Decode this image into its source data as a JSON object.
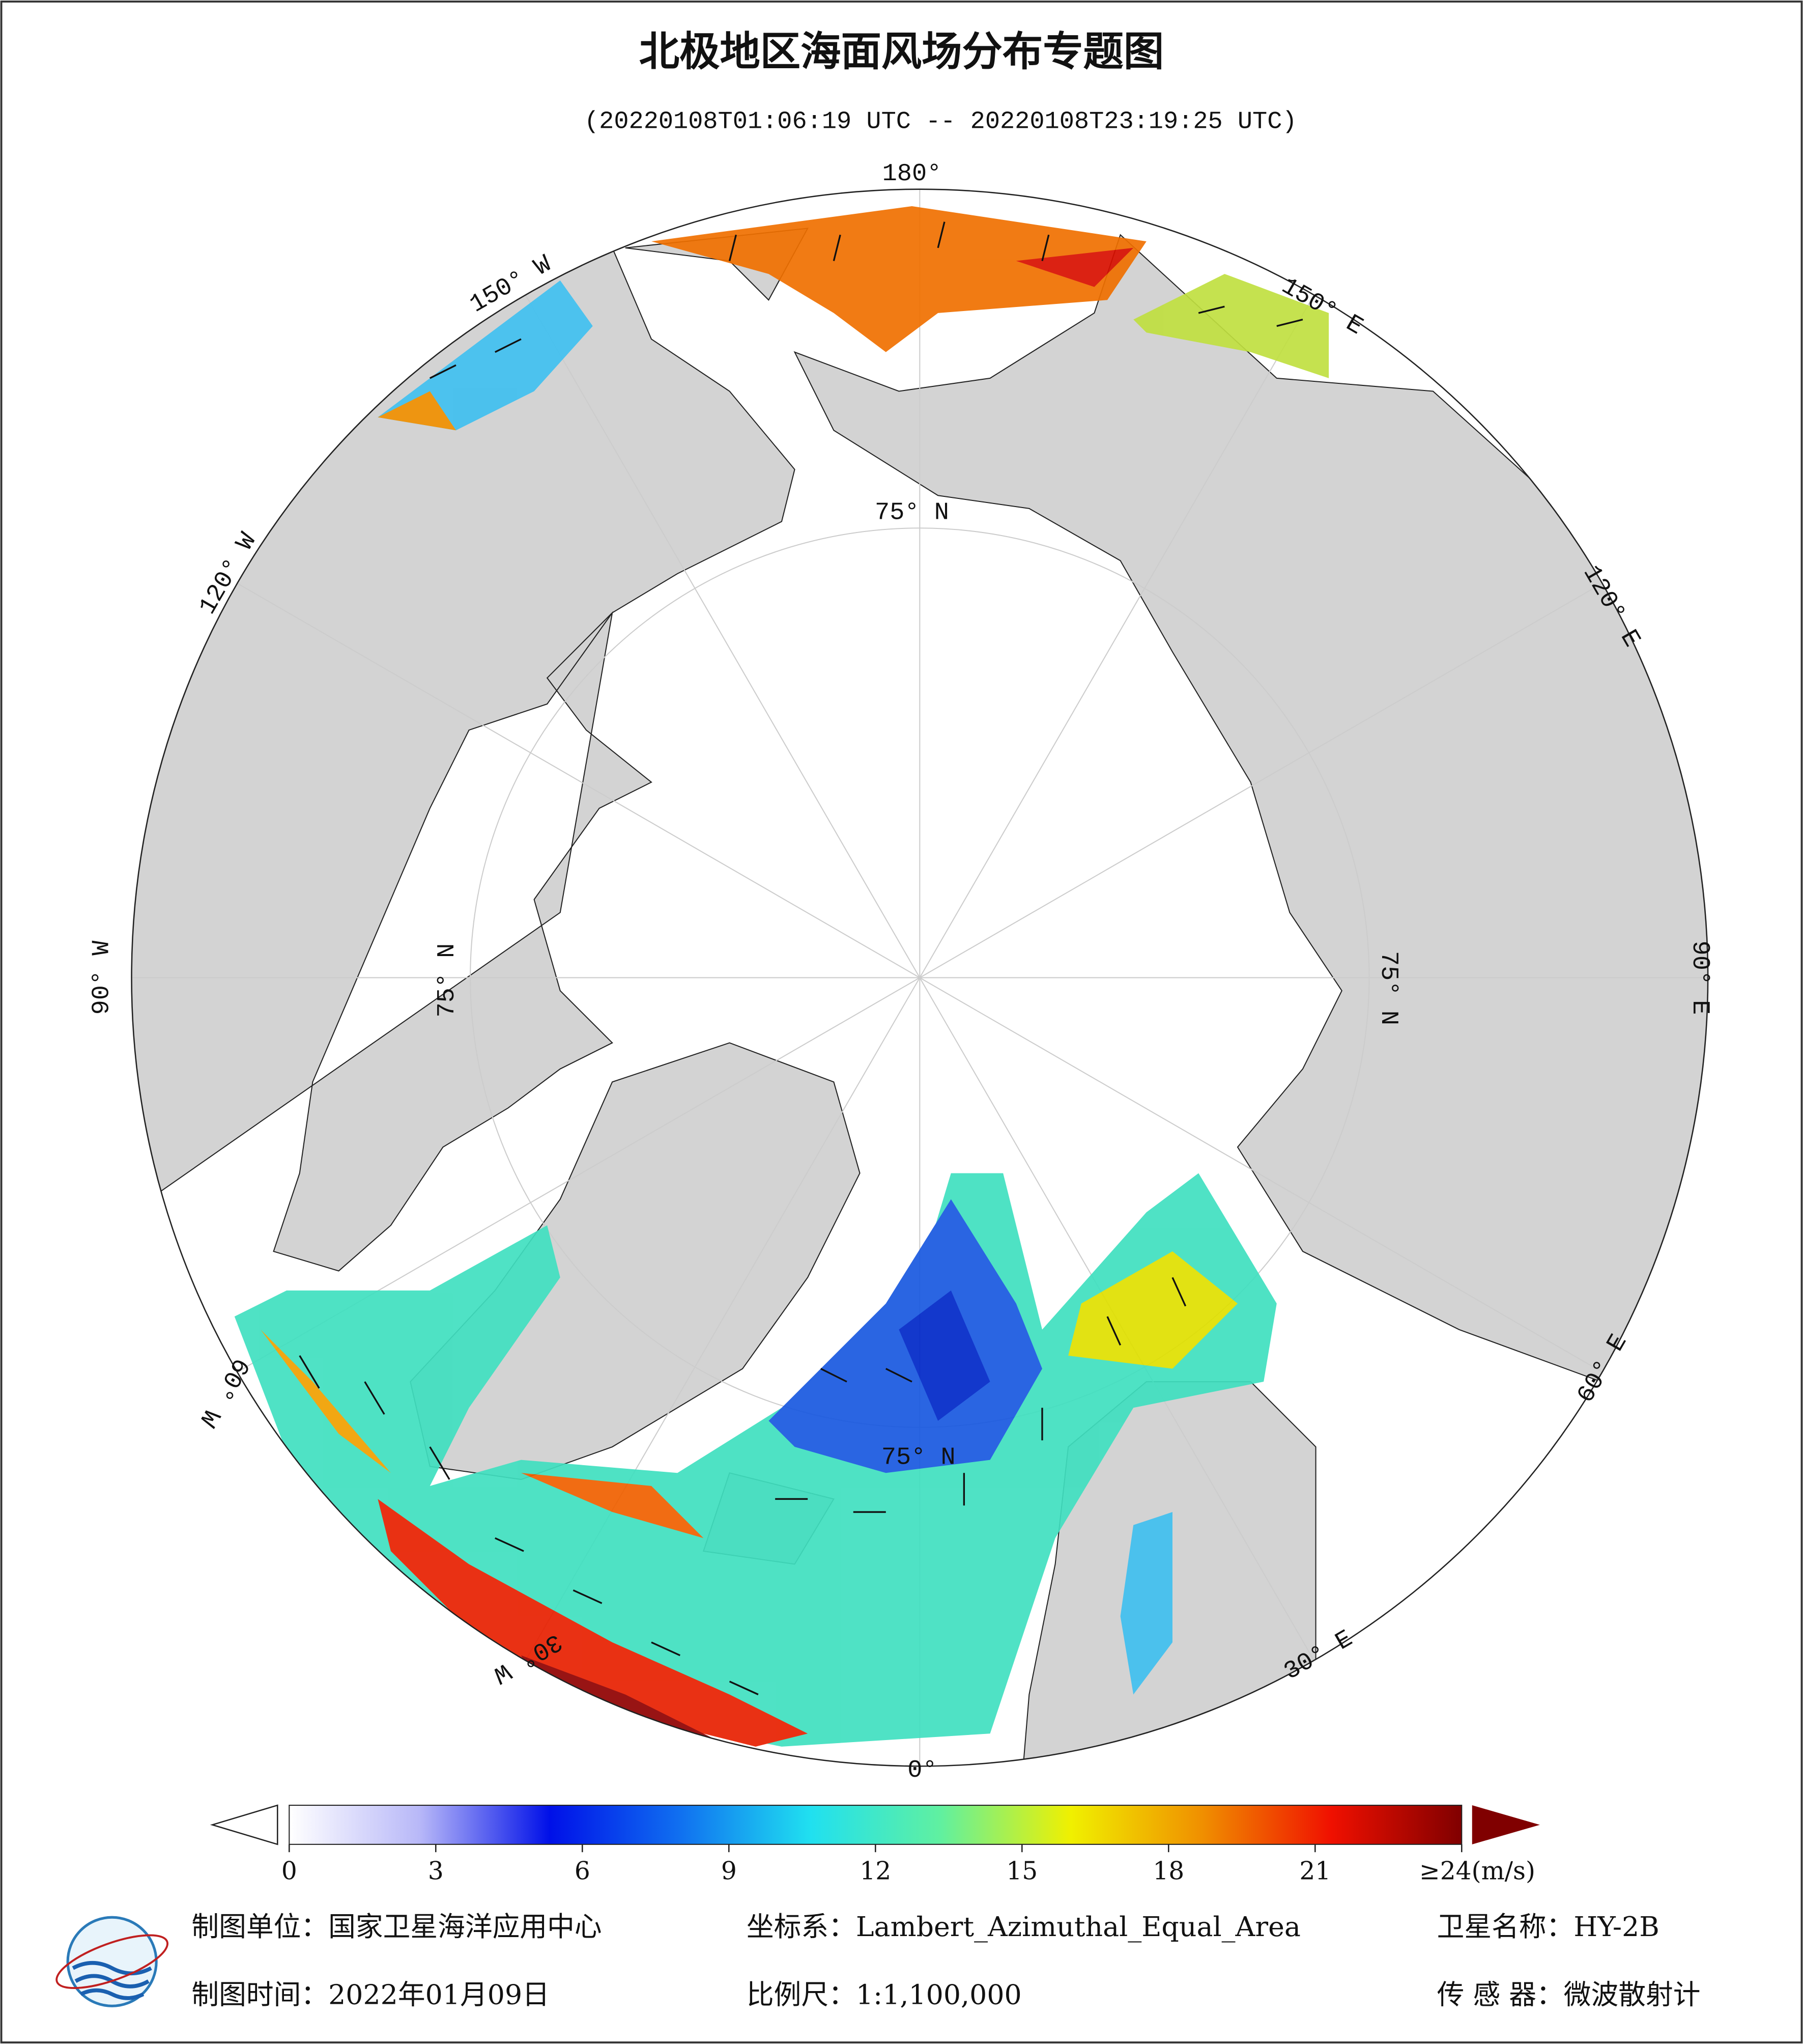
{
  "title": "北极地区海面风场分布专题图",
  "subtitle": "(20220108T01:06:19 UTC -- 20220108T23:19:25 UTC)",
  "map": {
    "longitude_labels": [
      "180°",
      "150° E",
      "120° E",
      "90° E",
      "60° E",
      "30° E",
      "0°",
      "30° W",
      "60° W",
      "90° W",
      "120° W",
      "150° W"
    ],
    "latitude_labels": [
      "75° N",
      "75° N",
      "75° N",
      "75° N"
    ]
  },
  "colorbar": {
    "range": [
      0,
      24
    ],
    "ticks": [
      0,
      3,
      6,
      9,
      12,
      15,
      18,
      21,
      {
        "value": 24,
        "label": "≥24(m/s)"
      }
    ],
    "colors": [
      "#ffffff",
      "#b8b8f8",
      "#0010e8",
      "#1070f0",
      "#20e0f0",
      "#60f0a0",
      "#f0f000",
      "#f09000",
      "#f01000",
      "#800000"
    ]
  },
  "footer": {
    "unit": "制图单位：国家卫星海洋应用中心",
    "projection": "坐标系：Lambert_Azimuthal_Equal_Area",
    "satellite": "卫星名称：HY-2B",
    "date": "制图时间：2022年01月09日",
    "scale": "比例尺：1:1,100,000",
    "sensor": "传 感 器：微波散射计"
  }
}
